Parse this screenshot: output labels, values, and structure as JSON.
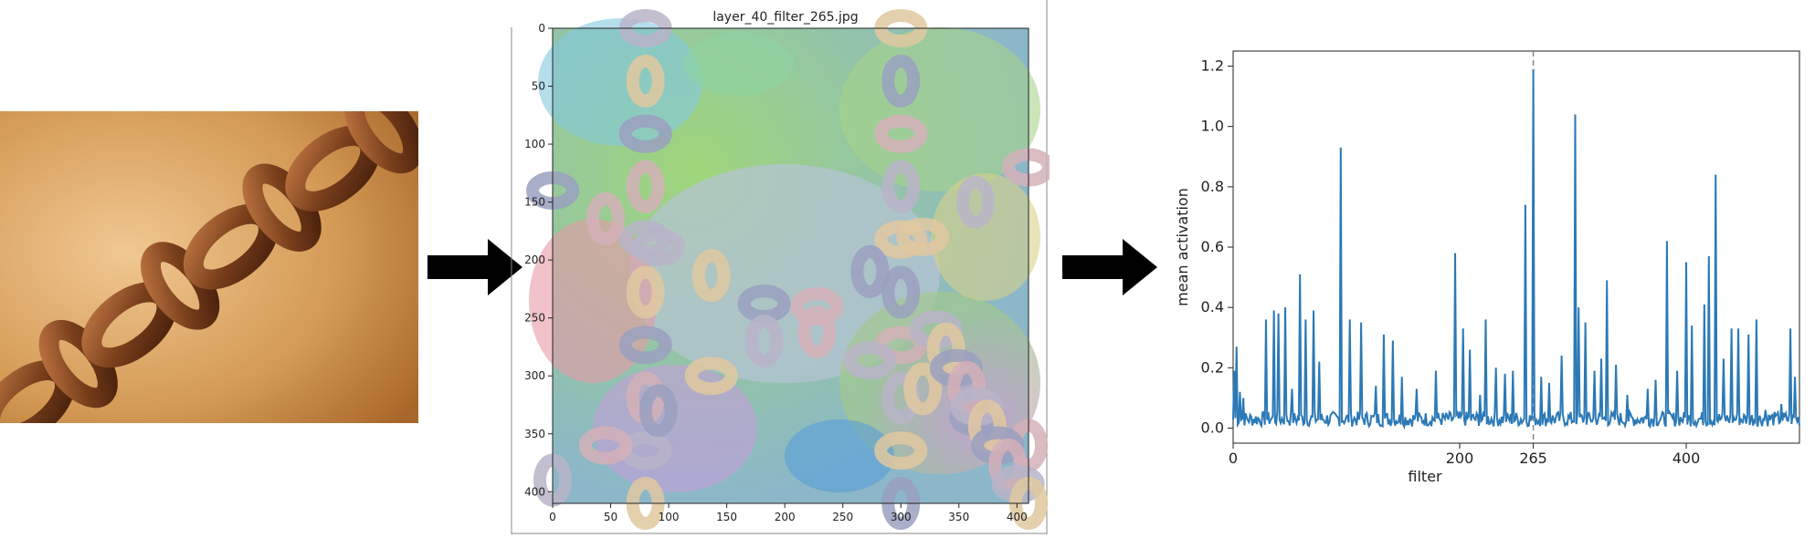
{
  "figure": {
    "photo": {
      "subject_icon": "chain-photo",
      "colors": {
        "bg_light": "#e8b67a",
        "bg_dark": "#a8672a",
        "chain": "#7a3f1c"
      }
    },
    "arrows": {
      "icon": "right-arrow-icon",
      "color": "#000000"
    },
    "feature_map": {
      "title": "layer_40_filter_265.jpg",
      "xticks": [
        "0",
        "50",
        "100",
        "150",
        "200",
        "250",
        "300",
        "350",
        "400"
      ],
      "yticks": [
        "0",
        "50",
        "100",
        "150",
        "200",
        "250",
        "300",
        "350",
        "400"
      ]
    }
  },
  "chart_data": {
    "type": "line",
    "xlabel": "filter",
    "ylabel": "mean activation",
    "xlim": [
      0,
      500
    ],
    "ylim": [
      -0.05,
      1.25
    ],
    "xticks": [
      "0",
      "200",
      "265",
      "400"
    ],
    "yticks": [
      "0.0",
      "0.2",
      "0.4",
      "0.6",
      "0.8",
      "1.0",
      "1.2"
    ],
    "highlight_x": 265,
    "grid": false,
    "series_color": "#2b79b6",
    "peaks": [
      {
        "x": 1,
        "y": 0.19
      },
      {
        "x": 3,
        "y": 0.27
      },
      {
        "x": 6,
        "y": 0.12
      },
      {
        "x": 9,
        "y": 0.1
      },
      {
        "x": 29,
        "y": 0.36
      },
      {
        "x": 36,
        "y": 0.39
      },
      {
        "x": 40,
        "y": 0.38
      },
      {
        "x": 46,
        "y": 0.4
      },
      {
        "x": 52,
        "y": 0.13
      },
      {
        "x": 59,
        "y": 0.51
      },
      {
        "x": 64,
        "y": 0.36
      },
      {
        "x": 71,
        "y": 0.39
      },
      {
        "x": 76,
        "y": 0.22
      },
      {
        "x": 95,
        "y": 0.93
      },
      {
        "x": 103,
        "y": 0.36
      },
      {
        "x": 113,
        "y": 0.35
      },
      {
        "x": 126,
        "y": 0.14
      },
      {
        "x": 133,
        "y": 0.31
      },
      {
        "x": 141,
        "y": 0.29
      },
      {
        "x": 149,
        "y": 0.17
      },
      {
        "x": 162,
        "y": 0.13
      },
      {
        "x": 179,
        "y": 0.19
      },
      {
        "x": 196,
        "y": 0.58
      },
      {
        "x": 203,
        "y": 0.33
      },
      {
        "x": 209,
        "y": 0.26
      },
      {
        "x": 218,
        "y": 0.11
      },
      {
        "x": 223,
        "y": 0.36
      },
      {
        "x": 232,
        "y": 0.2
      },
      {
        "x": 240,
        "y": 0.18
      },
      {
        "x": 247,
        "y": 0.19
      },
      {
        "x": 258,
        "y": 0.74
      },
      {
        "x": 265,
        "y": 1.19
      },
      {
        "x": 272,
        "y": 0.17
      },
      {
        "x": 279,
        "y": 0.15
      },
      {
        "x": 290,
        "y": 0.24
      },
      {
        "x": 302,
        "y": 1.04
      },
      {
        "x": 305,
        "y": 0.4
      },
      {
        "x": 311,
        "y": 0.35
      },
      {
        "x": 319,
        "y": 0.19
      },
      {
        "x": 325,
        "y": 0.23
      },
      {
        "x": 330,
        "y": 0.49
      },
      {
        "x": 338,
        "y": 0.21
      },
      {
        "x": 348,
        "y": 0.11
      },
      {
        "x": 366,
        "y": 0.13
      },
      {
        "x": 373,
        "y": 0.16
      },
      {
        "x": 383,
        "y": 0.62
      },
      {
        "x": 392,
        "y": 0.19
      },
      {
        "x": 400,
        "y": 0.55
      },
      {
        "x": 405,
        "y": 0.34
      },
      {
        "x": 416,
        "y": 0.41
      },
      {
        "x": 420,
        "y": 0.57
      },
      {
        "x": 426,
        "y": 0.84
      },
      {
        "x": 433,
        "y": 0.23
      },
      {
        "x": 440,
        "y": 0.33
      },
      {
        "x": 446,
        "y": 0.33
      },
      {
        "x": 455,
        "y": 0.31
      },
      {
        "x": 462,
        "y": 0.36
      },
      {
        "x": 470,
        "y": 0.06
      },
      {
        "x": 479,
        "y": 0.04
      },
      {
        "x": 484,
        "y": 0.08
      },
      {
        "x": 492,
        "y": 0.33
      },
      {
        "x": 496,
        "y": 0.17
      }
    ]
  }
}
